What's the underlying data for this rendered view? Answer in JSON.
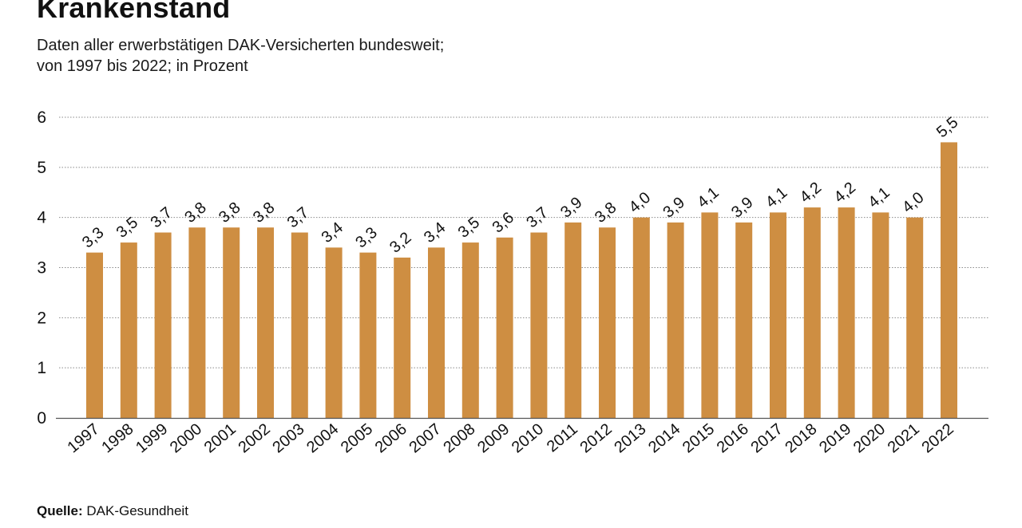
{
  "title": "Krankenstand",
  "subtitle": {
    "line1": "Daten aller erwerbstätigen DAK-Versicherten bundesweit;",
    "line2": "von 1997 bis 2022; in Prozent"
  },
  "source": {
    "label": "Quelle:",
    "value": "DAK-Gesundheit"
  },
  "colors": {
    "bar": "#CE8E42",
    "grid": "#8a8a8a",
    "axis": "#555555",
    "text": "#111111"
  },
  "chart_data": {
    "type": "bar",
    "title": "Krankenstand",
    "xlabel": "",
    "ylabel": "",
    "ylim": [
      0,
      6
    ],
    "yticks": [
      0,
      1,
      2,
      3,
      4,
      5,
      6
    ],
    "grid": true,
    "categories": [
      "1997",
      "1998",
      "1999",
      "2000",
      "2001",
      "2002",
      "2003",
      "2004",
      "2005",
      "2006",
      "2007",
      "2008",
      "2009",
      "2010",
      "2011",
      "2012",
      "2013",
      "2014",
      "2015",
      "2016",
      "2017",
      "2018",
      "2019",
      "2020",
      "2021",
      "2022"
    ],
    "values": [
      3.3,
      3.5,
      3.7,
      3.8,
      3.8,
      3.8,
      3.7,
      3.4,
      3.3,
      3.2,
      3.4,
      3.5,
      3.6,
      3.7,
      3.9,
      3.8,
      4.0,
      3.9,
      4.1,
      3.9,
      4.1,
      4.2,
      4.2,
      4.1,
      4.0,
      5.5
    ],
    "value_labels": [
      "3,3",
      "3,5",
      "3,7",
      "3,8",
      "3,8",
      "3,8",
      "3,7",
      "3,4",
      "3,3",
      "3,2",
      "3,4",
      "3,5",
      "3,6",
      "3,7",
      "3,9",
      "3,8",
      "4,0",
      "3,9",
      "4,1",
      "3,9",
      "4,1",
      "4,2",
      "4,2",
      "4,1",
      "4,0",
      "5,5"
    ]
  }
}
